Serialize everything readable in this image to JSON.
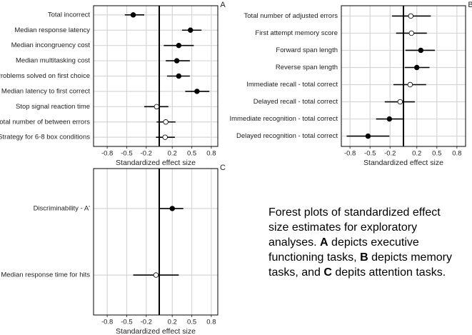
{
  "chart_data": [
    {
      "type": "forest",
      "title": "A",
      "xlabel": "Standardized effect size",
      "categories": [
        "Total incorrect",
        "Median response latency",
        "Median incongruency cost",
        "Median multitasking cost",
        "Problems solved on first choice",
        "Median latency to first correct",
        "Stop signal reaction time",
        "Total number of between errors",
        "Strategy for 6-8 box conditions"
      ],
      "values": [
        -0.4,
        0.48,
        0.3,
        0.27,
        0.3,
        0.58,
        -0.04,
        0.1,
        0.09
      ],
      "lower": [
        -0.53,
        0.35,
        0.07,
        0.1,
        0.12,
        0.4,
        -0.23,
        -0.04,
        -0.05
      ],
      "upper": [
        -0.23,
        0.65,
        0.53,
        0.47,
        0.47,
        0.77,
        0.14,
        0.25,
        0.24
      ],
      "filled": [
        true,
        true,
        true,
        true,
        true,
        true,
        false,
        false,
        false
      ],
      "xlim": [
        -1.01,
        0.9
      ],
      "xticks": [
        -0.8,
        -0.5,
        -0.2,
        0.2,
        0.5,
        0.8
      ],
      "reference_line": 0,
      "grid": true,
      "color": "#000000"
    },
    {
      "type": "forest",
      "title": "B",
      "xlabel": "Standardized effect size",
      "categories": [
        "Total number of adjusted errors",
        "First attempt memory score",
        "Forward span length",
        "Reverse span length",
        "Immediate recall - total correct",
        "Delayed recall - total correct",
        "Immediate recognition - total correct",
        "Delayed recognition - total correct"
      ],
      "values": [
        0.11,
        0.12,
        0.26,
        0.2,
        0.1,
        -0.05,
        -0.21,
        -0.53
      ],
      "lower": [
        -0.17,
        -0.11,
        0.03,
        0.02,
        -0.15,
        -0.28,
        -0.41,
        -0.85
      ],
      "upper": [
        0.41,
        0.35,
        0.47,
        0.39,
        0.34,
        0.17,
        -0.01,
        -0.21
      ],
      "filled": [
        false,
        false,
        true,
        true,
        false,
        false,
        true,
        true
      ],
      "xlim": [
        -0.93,
        0.93
      ],
      "xticks": [
        -0.8,
        -0.5,
        -0.2,
        0.2,
        0.5,
        0.8
      ],
      "reference_line": 0,
      "grid": true,
      "color": "#000000"
    },
    {
      "type": "forest",
      "title": "C",
      "xlabel": "Standardized effect size",
      "categories": [
        "Discriminability - A'",
        "Median response time for hits"
      ],
      "values": [
        0.2,
        -0.05
      ],
      "lower": [
        0.01,
        -0.4
      ],
      "upper": [
        0.37,
        0.3
      ],
      "filled": [
        true,
        false
      ],
      "xlim": [
        -1.01,
        0.9
      ],
      "xticks": [
        -0.8,
        -0.5,
        -0.2,
        0.2,
        0.5,
        0.8
      ],
      "reference_line": 0,
      "grid": true,
      "color": "#000000"
    }
  ],
  "caption": [
    "Forest plots of standardized effect size estimates for exploratory analyses. ",
    "A",
    " depicts executive functioning tasks, ",
    "B",
    " depicts memory tasks, and ",
    "C",
    " depits attention tasks."
  ]
}
